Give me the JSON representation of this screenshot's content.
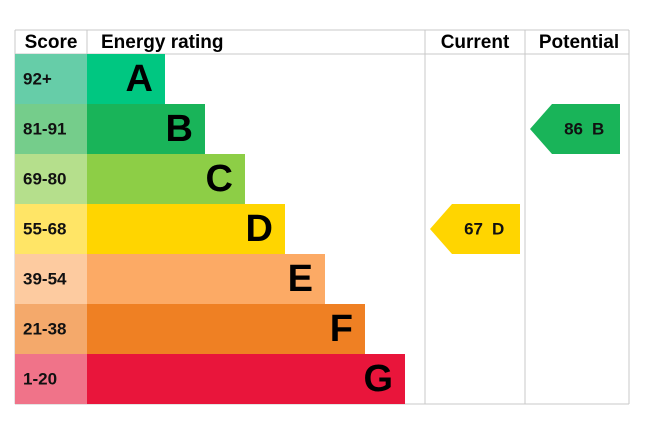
{
  "header": {
    "score": "Score",
    "rating": "Energy rating",
    "current": "Current",
    "potential": "Potential"
  },
  "rows": [
    {
      "score": "92+",
      "band": "A"
    },
    {
      "score": "81-91",
      "band": "B"
    },
    {
      "score": "69-80",
      "band": "C"
    },
    {
      "score": "55-68",
      "band": "D"
    },
    {
      "score": "39-54",
      "band": "E"
    },
    {
      "score": "21-38",
      "band": "F"
    },
    {
      "score": "1-20",
      "band": "G"
    }
  ],
  "current": {
    "value": 67,
    "band": "D"
  },
  "potential": {
    "value": 86,
    "band": "B"
  }
}
